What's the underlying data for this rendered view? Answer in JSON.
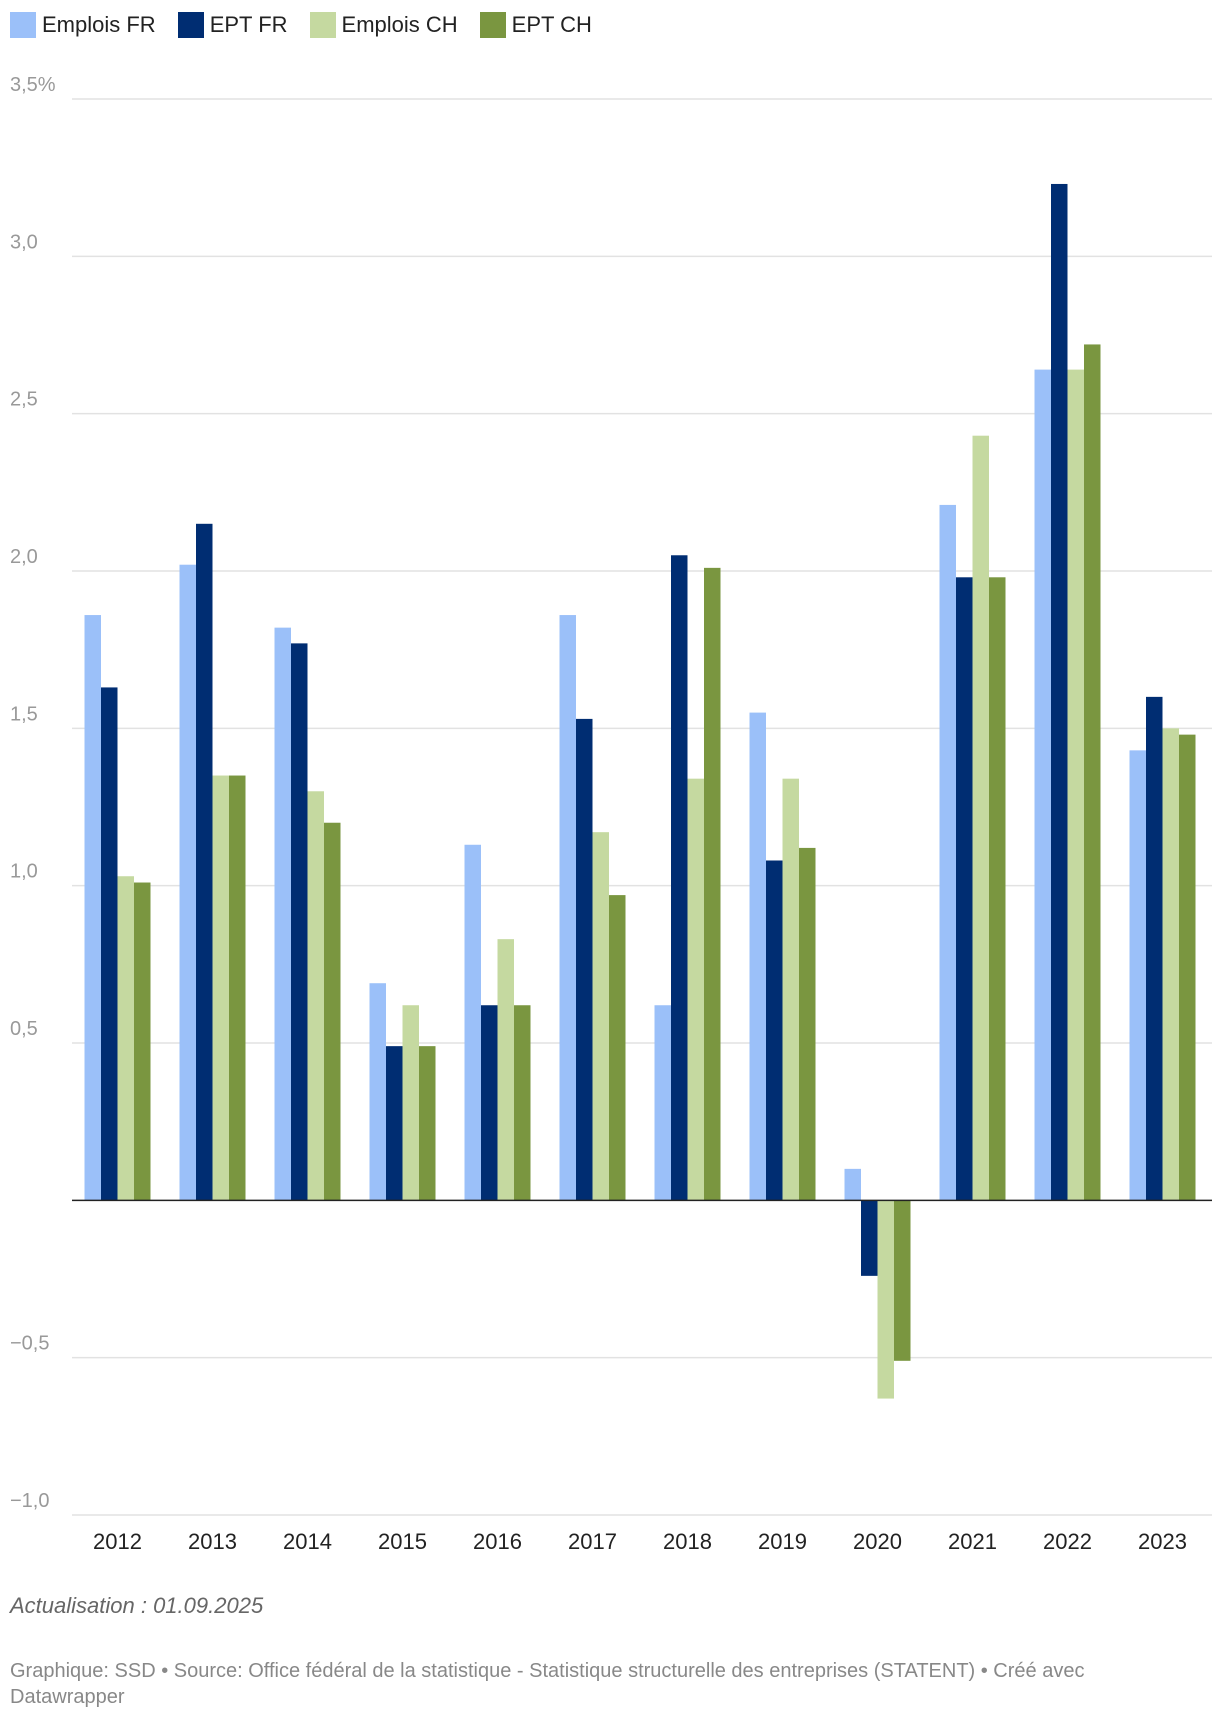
{
  "chart_data": {
    "type": "bar",
    "categories": [
      "2012",
      "2013",
      "2014",
      "2015",
      "2016",
      "2017",
      "2018",
      "2019",
      "2020",
      "2021",
      "2022",
      "2023"
    ],
    "series": [
      {
        "name": "Emplois FR",
        "color": "#9bc0f9",
        "values": [
          1.86,
          2.02,
          1.82,
          0.69,
          1.13,
          1.86,
          0.62,
          1.55,
          0.1,
          2.21,
          2.64,
          1.43
        ]
      },
      {
        "name": "EPT FR",
        "color": "#002d72",
        "values": [
          1.63,
          2.15,
          1.77,
          0.49,
          0.62,
          1.53,
          2.05,
          1.08,
          -0.24,
          1.98,
          3.23,
          1.6
        ]
      },
      {
        "name": "Emplois CH",
        "color": "#c5d9a0",
        "values": [
          1.03,
          1.35,
          1.3,
          0.62,
          0.83,
          1.17,
          1.34,
          1.34,
          -0.63,
          2.43,
          2.64,
          1.5
        ]
      },
      {
        "name": "EPT CH",
        "color": "#7a9640",
        "values": [
          1.01,
          1.35,
          1.2,
          0.49,
          0.62,
          0.97,
          2.01,
          1.12,
          -0.51,
          1.98,
          2.72,
          1.48
        ]
      }
    ],
    "ylim": [
      -1.0,
      3.5
    ],
    "yticks": [
      -1.0,
      -0.5,
      0.5,
      1.0,
      1.5,
      2.0,
      2.5,
      3.0,
      3.5
    ],
    "ytick_labels": [
      "−1,0",
      "−0,5",
      "0,5",
      "1,0",
      "1,5",
      "2,0",
      "2,5",
      "3,0",
      "3,5%"
    ],
    "grid": true,
    "legend_position": "top-left"
  },
  "note": "Actualisation : 01.09.2025",
  "footer": "Graphique: SSD • Source: Office fédéral de la statistique - Statistique structurelle des entreprises (STATENT) • Créé avec Datawrapper"
}
